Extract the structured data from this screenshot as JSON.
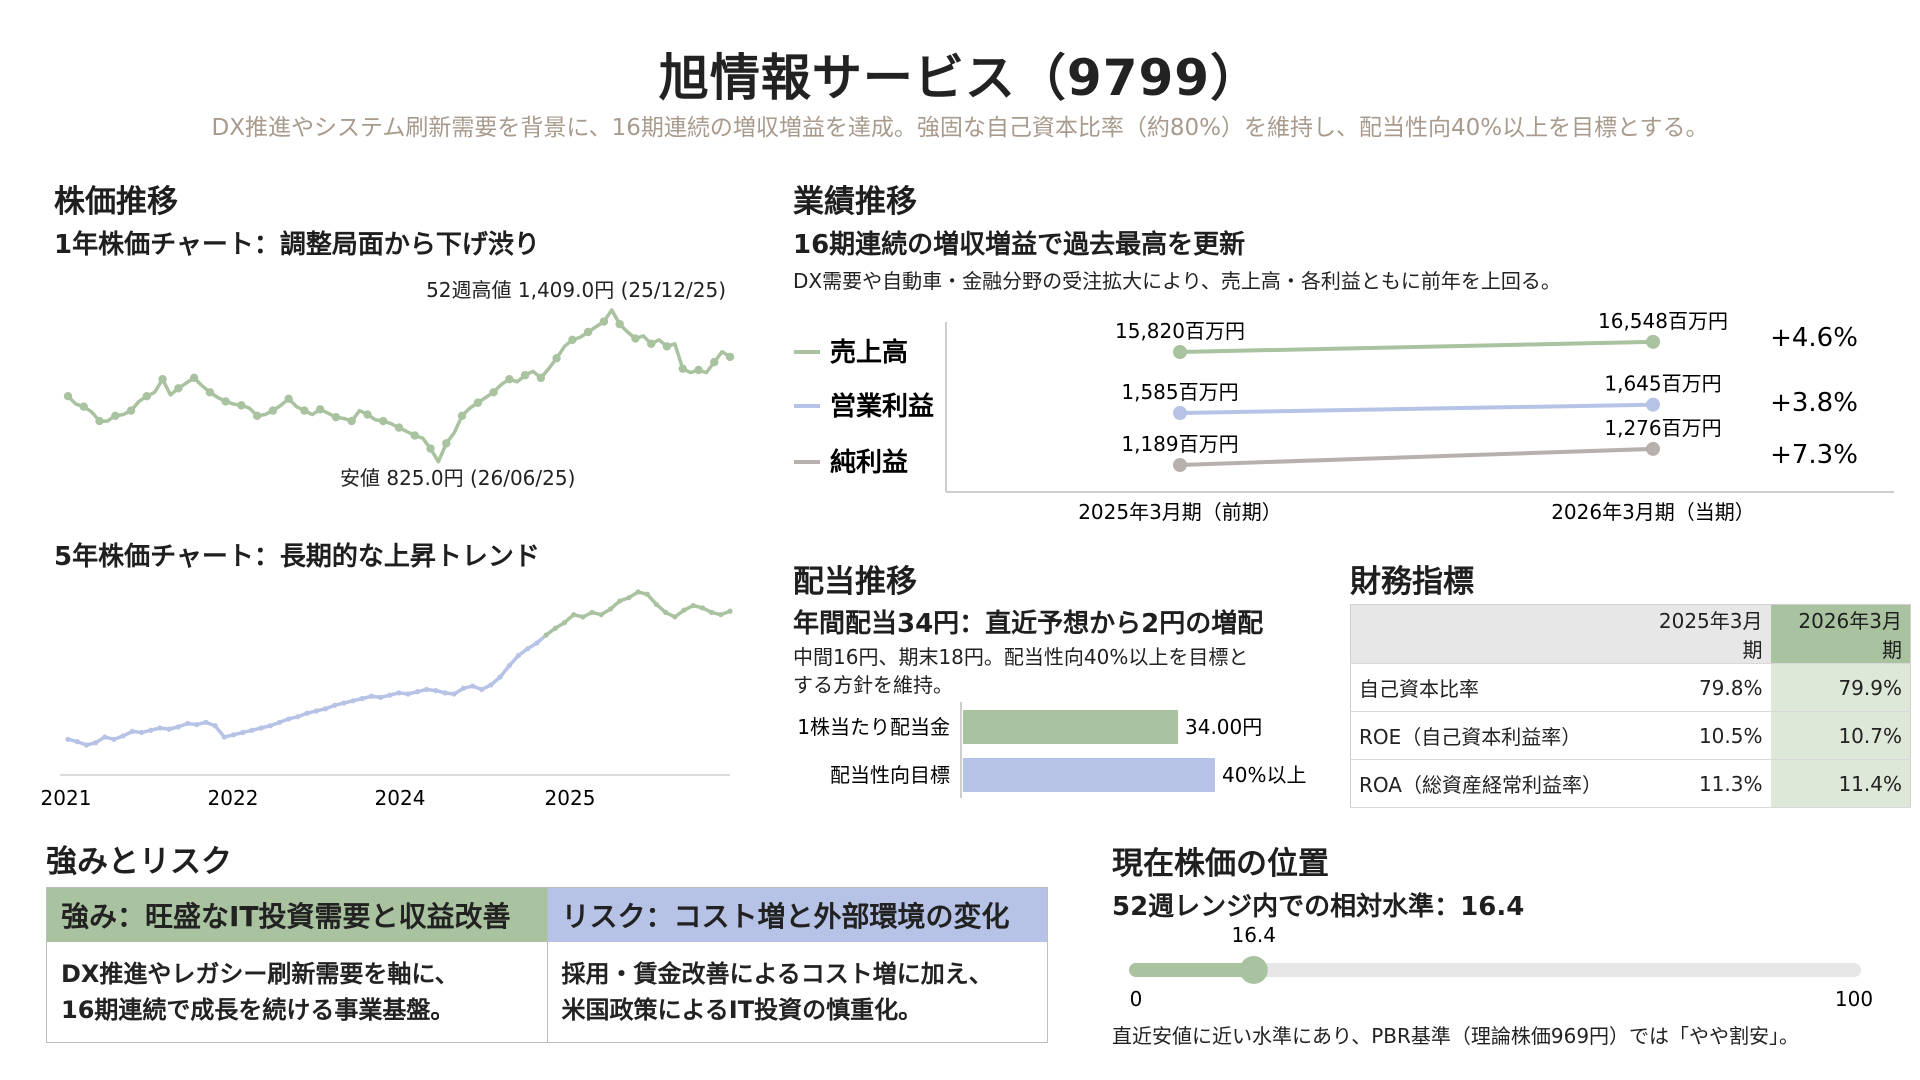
{
  "header": {
    "title": "旭情報サービス（9799）",
    "subtitle": "DX推進やシステム刷新需要を背景に、16期連続の増収増益を達成。強固な自己資本比率（約80%）を維持し、配当性向40%以上を目標とする。"
  },
  "stock": {
    "heading": "株価推移",
    "chart1_title": "1年株価チャート：調整局面から下げ渋り",
    "high_label": "52週高値 1,409.0円 (25/12/25)",
    "low_label": "安値 825.0円 (26/06/25)",
    "chart2_title": "5年株価チャート：長期的な上昇トレンド",
    "chart2_ticks": [
      "2021",
      "2022",
      "2024",
      "2025"
    ]
  },
  "performance": {
    "heading": "業績推移",
    "headline": "16期連続の増収増益で過去最高を更新",
    "note": "DX需要や自動車・金融分野の受注拡大により、売上高・各利益ともに前年を上回る。"
  },
  "dividend": {
    "heading": "配当推移",
    "headline": "年間配当34円：直近予想から2円の増配",
    "note_line1": "中間16円、期末18円。配当性向40%以上を目標と",
    "note_line2": "する方針を維持。"
  },
  "financials": {
    "heading": "財務指標",
    "columns": [
      "",
      "2025年3月期",
      "2026年3月期"
    ],
    "rows": [
      [
        "自己資本比率",
        "79.8%",
        "79.9%"
      ],
      [
        "ROE（自己資本利益率）",
        "10.5%",
        "10.7%"
      ],
      [
        "ROA（総資産経常利益率）",
        "11.3%",
        "11.4%"
      ]
    ]
  },
  "strengths_risks": {
    "heading": "強みとリスク",
    "strength_title": "強み：旺盛なIT投資需要と収益改善",
    "strength_line1": "DX推進やレガシー刷新需要を軸に、",
    "strength_line2": "16期連続で成長を続ける事業基盤。",
    "risk_title": "リスク：コスト増と外部環境の変化",
    "risk_line1": "採用・賃金改善によるコスト増に加え、",
    "risk_line2": "米国政策によるIT投資の慎重化。"
  },
  "position": {
    "heading": "現在株価の位置",
    "headline": "52週レンジ内での相対水準：16.4",
    "value_label": "16.4",
    "min_label": "0",
    "max_label": "100",
    "note": "直近安値に近い水準にあり、PBR基準（理論株価969円）では「やや割安」。"
  },
  "colors": {
    "green": "#a9c29f",
    "blue": "#b7c3e6",
    "gray": "#b8b0ad",
    "track": "#e6e6e6"
  },
  "chart_data": [
    {
      "type": "line",
      "title": "1年株価チャート：調整局面から下げ渋り",
      "series": [
        {
          "values": [
            1080,
            1050,
            1040,
            1020,
            985,
            985,
            1005,
            1010,
            1025,
            1060,
            1080,
            1095,
            1145,
            1085,
            1110,
            1130,
            1150,
            1120,
            1095,
            1075,
            1060,
            1050,
            1045,
            1035,
            1005,
            1010,
            1025,
            1045,
            1070,
            1040,
            1025,
            1010,
            1030,
            1015,
            1000,
            995,
            985,
            1025,
            1010,
            990,
            985,
            975,
            960,
            945,
            930,
            920,
            880,
            830,
            900,
            940,
            1005,
            1035,
            1055,
            1075,
            1095,
            1125,
            1145,
            1135,
            1160,
            1175,
            1150,
            1185,
            1225,
            1270,
            1295,
            1305,
            1325,
            1345,
            1365,
            1409,
            1355,
            1325,
            1300,
            1310,
            1280,
            1295,
            1270,
            1280,
            1185,
            1170,
            1180,
            1170,
            1210,
            1250,
            1230
          ]
        }
      ],
      "annotations": [
        "52週高値 1,409.0円 (25/12/25)",
        "安値 825.0円 (26/06/25)"
      ]
    },
    {
      "type": "line",
      "title": "5年株価チャート：長期的な上昇トレンド",
      "x_ticks": [
        "2021",
        "2022",
        "2024",
        "2025"
      ],
      "series": [
        {
          "values": [
            60,
            58,
            55,
            57,
            62,
            60,
            63,
            67,
            66,
            68,
            70,
            69,
            71,
            74,
            73,
            75,
            72,
            62,
            64,
            66,
            68,
            70,
            72,
            75,
            78,
            80,
            83,
            85,
            87,
            90,
            92,
            94,
            96,
            98,
            97,
            99,
            101,
            100,
            102,
            104,
            103,
            101,
            100,
            105,
            107,
            104,
            108,
            115,
            125,
            134,
            140,
            145,
            152,
            158,
            163,
            170,
            168,
            172,
            170,
            175,
            182,
            185,
            190,
            188,
            179,
            172,
            168,
            174,
            178,
            176,
            172,
            170,
            173
          ]
        }
      ]
    },
    {
      "type": "line",
      "title": "業績推移",
      "categories": [
        "2025年3月期（前期）",
        "2026年3月期（当期）"
      ],
      "series": [
        {
          "name": "売上高",
          "values": [
            15820,
            16548
          ],
          "labels": [
            "15,820百万円",
            "16,548百万円"
          ],
          "change": "+4.6%"
        },
        {
          "name": "営業利益",
          "values": [
            1585,
            1645
          ],
          "labels": [
            "1,585百万円",
            "1,645百万円"
          ],
          "change": "+3.8%"
        },
        {
          "name": "純利益",
          "values": [
            1189,
            1276
          ],
          "labels": [
            "1,189百万円",
            "1,276百万円"
          ],
          "change": "+7.3%"
        }
      ]
    },
    {
      "type": "bar",
      "title": "配当推移",
      "categories": [
        "1株当たり配当金",
        "配当性向目標"
      ],
      "values": [
        34,
        40
      ],
      "labels": [
        "34.00円",
        "40%以上"
      ]
    },
    {
      "type": "bar",
      "title": "現在株価の位置",
      "values": [
        16.4
      ],
      "range": [
        0,
        100
      ]
    }
  ]
}
